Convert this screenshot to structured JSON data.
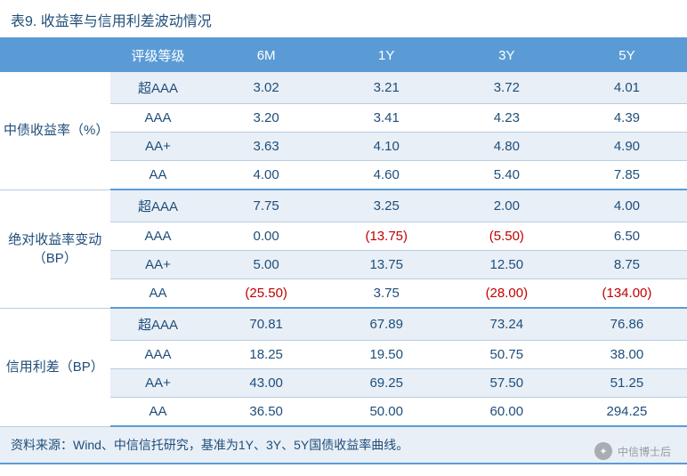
{
  "title": "表9. 收益率与信用利差波动情况",
  "header": {
    "blank": "",
    "rating": "评级等级",
    "c6m": "6M",
    "c1y": "1Y",
    "c3y": "3Y",
    "c5y": "5Y"
  },
  "sections": [
    {
      "label": "中债收益率（%）",
      "rows": [
        {
          "rating": "超AAA",
          "v": [
            "3.02",
            "3.21",
            "3.72",
            "4.01"
          ],
          "neg": [
            false,
            false,
            false,
            false
          ]
        },
        {
          "rating": "AAA",
          "v": [
            "3.20",
            "3.41",
            "4.23",
            "4.39"
          ],
          "neg": [
            false,
            false,
            false,
            false
          ]
        },
        {
          "rating": "AA+",
          "v": [
            "3.63",
            "4.10",
            "4.80",
            "4.90"
          ],
          "neg": [
            false,
            false,
            false,
            false
          ]
        },
        {
          "rating": "AA",
          "v": [
            "4.00",
            "4.60",
            "5.40",
            "7.85"
          ],
          "neg": [
            false,
            false,
            false,
            false
          ]
        }
      ]
    },
    {
      "label": "绝对收益率变动（BP）",
      "rows": [
        {
          "rating": "超AAA",
          "v": [
            "7.75",
            "3.25",
            "2.00",
            "4.00"
          ],
          "neg": [
            false,
            false,
            false,
            false
          ]
        },
        {
          "rating": "AAA",
          "v": [
            "0.00",
            "(13.75)",
            "(5.50)",
            "6.50"
          ],
          "neg": [
            false,
            true,
            true,
            false
          ]
        },
        {
          "rating": "AA+",
          "v": [
            "5.00",
            "13.75",
            "12.50",
            "8.75"
          ],
          "neg": [
            false,
            false,
            false,
            false
          ]
        },
        {
          "rating": "AA",
          "v": [
            "(25.50)",
            "3.75",
            "(28.00)",
            "(134.00)"
          ],
          "neg": [
            true,
            false,
            true,
            true
          ]
        }
      ]
    },
    {
      "label": "信用利差（BP）",
      "rows": [
        {
          "rating": "超AAA",
          "v": [
            "70.81",
            "67.89",
            "73.24",
            "76.86"
          ],
          "neg": [
            false,
            false,
            false,
            false
          ]
        },
        {
          "rating": "AAA",
          "v": [
            "18.25",
            "19.50",
            "50.75",
            "38.00"
          ],
          "neg": [
            false,
            false,
            false,
            false
          ]
        },
        {
          "rating": "AA+",
          "v": [
            "43.00",
            "69.25",
            "57.50",
            "51.25"
          ],
          "neg": [
            false,
            false,
            false,
            false
          ]
        },
        {
          "rating": "AA",
          "v": [
            "36.50",
            "50.00",
            "60.00",
            "294.25"
          ],
          "neg": [
            false,
            false,
            false,
            false
          ]
        }
      ]
    }
  ],
  "source": "资料来源：Wind、中信信托研究，基准为1Y、3Y、5Y国债收益率曲线。",
  "watermark": "中信博士后",
  "colors": {
    "header_bg": "#5b9bd5",
    "header_text": "#ffffff",
    "band_bg": "#e8eff7",
    "text": "#1f4e79",
    "border": "#b8cde2",
    "neg": "#c00000"
  }
}
